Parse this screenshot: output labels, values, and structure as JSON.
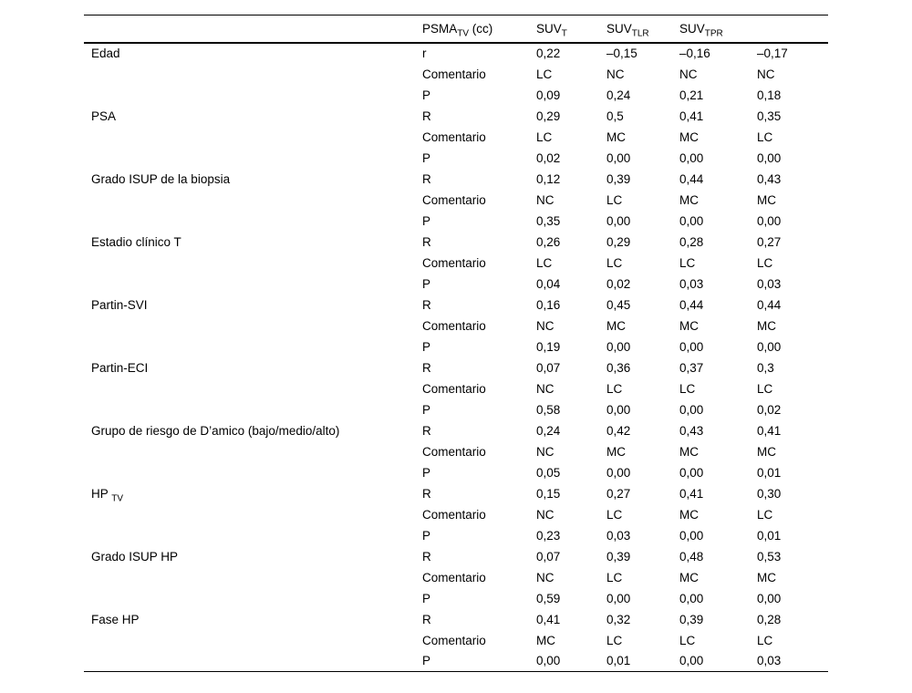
{
  "table": {
    "headers": [
      {
        "base": "",
        "sub": "",
        "suffix": ""
      },
      {
        "base": "PSMA",
        "sub": "TV",
        "suffix": " (cc)"
      },
      {
        "base": "SUV",
        "sub": "T",
        "suffix": ""
      },
      {
        "base": "SUV",
        "sub": "TLR",
        "suffix": ""
      },
      {
        "base": "SUV",
        "sub": "TPR",
        "suffix": ""
      },
      {
        "base": "",
        "sub": "",
        "suffix": ""
      }
    ],
    "groups": [
      {
        "label": {
          "base": "Edad",
          "sub": ""
        },
        "rows": [
          {
            "stat": "r",
            "values": [
              "0,22",
              "–0,15",
              "–0,16",
              "–0,17"
            ]
          },
          {
            "stat": "Comentario",
            "values": [
              "LC",
              "NC",
              "NC",
              "NC"
            ]
          },
          {
            "stat": "P",
            "values": [
              "0,09",
              "0,24",
              "0,21",
              "0,18"
            ]
          }
        ]
      },
      {
        "label": {
          "base": "PSA",
          "sub": ""
        },
        "rows": [
          {
            "stat": "R",
            "values": [
              "0,29",
              "0,5",
              "0,41",
              "0,35"
            ]
          },
          {
            "stat": "Comentario",
            "values": [
              "LC",
              "MC",
              "MC",
              "LC"
            ]
          },
          {
            "stat": "P",
            "values": [
              "0,02",
              "0,00",
              "0,00",
              "0,00"
            ]
          }
        ]
      },
      {
        "label": {
          "base": "Grado ISUP de la biopsia",
          "sub": ""
        },
        "rows": [
          {
            "stat": "R",
            "values": [
              "0,12",
              "0,39",
              "0,44",
              "0,43"
            ]
          },
          {
            "stat": "Comentario",
            "values": [
              "NC",
              "LC",
              "MC",
              "MC"
            ]
          },
          {
            "stat": "P",
            "values": [
              "0,35",
              "0,00",
              "0,00",
              "0,00"
            ]
          }
        ]
      },
      {
        "label": {
          "base": "Estadio clínico T",
          "sub": ""
        },
        "rows": [
          {
            "stat": "R",
            "values": [
              "0,26",
              "0,29",
              "0,28",
              "0,27"
            ]
          },
          {
            "stat": "Comentario",
            "values": [
              "LC",
              "LC",
              "LC",
              "LC"
            ]
          },
          {
            "stat": "P",
            "values": [
              "0,04",
              "0,02",
              "0,03",
              "0,03"
            ]
          }
        ]
      },
      {
        "label": {
          "base": "Partin-SVI",
          "sub": ""
        },
        "rows": [
          {
            "stat": "R",
            "values": [
              "0,16",
              "0,45",
              "0,44",
              "0,44"
            ]
          },
          {
            "stat": "Comentario",
            "values": [
              "NC",
              "MC",
              "MC",
              "MC"
            ]
          },
          {
            "stat": "P",
            "values": [
              "0,19",
              "0,00",
              "0,00",
              "0,00"
            ]
          }
        ]
      },
      {
        "label": {
          "base": "Partin-ECI",
          "sub": ""
        },
        "rows": [
          {
            "stat": "R",
            "values": [
              "0,07",
              "0,36",
              "0,37",
              "0,3"
            ]
          },
          {
            "stat": "Comentario",
            "values": [
              "NC",
              "LC",
              "LC",
              "LC"
            ]
          },
          {
            "stat": "P",
            "values": [
              "0,58",
              "0,00",
              "0,00",
              "0,02"
            ]
          }
        ]
      },
      {
        "label": {
          "base": "Grupo de riesgo de D’amico (bajo/medio/alto)",
          "sub": ""
        },
        "rows": [
          {
            "stat": "R",
            "values": [
              "0,24",
              "0,42",
              "0,43",
              "0,41"
            ]
          },
          {
            "stat": "Comentario",
            "values": [
              "NC",
              "MC",
              "MC",
              "MC"
            ]
          },
          {
            "stat": "P",
            "values": [
              "0,05",
              "0,00",
              "0,00",
              "0,01"
            ]
          }
        ]
      },
      {
        "label": {
          "base": "HP ",
          "sub": "TV"
        },
        "rows": [
          {
            "stat": "R",
            "values": [
              "0,15",
              "0,27",
              "0,41",
              "0,30"
            ]
          },
          {
            "stat": "Comentario",
            "values": [
              "NC",
              "LC",
              "MC",
              "LC"
            ]
          },
          {
            "stat": "P",
            "values": [
              "0,23",
              "0,03",
              "0,00",
              "0,01"
            ]
          }
        ]
      },
      {
        "label": {
          "base": "Grado ISUP HP",
          "sub": ""
        },
        "rows": [
          {
            "stat": "R",
            "values": [
              "0,07",
              "0,39",
              "0,48",
              "0,53"
            ]
          },
          {
            "stat": "Comentario",
            "values": [
              "NC",
              "LC",
              "MC",
              "MC"
            ]
          },
          {
            "stat": "P",
            "values": [
              "0,59",
              "0,00",
              "0,00",
              "0,00"
            ]
          }
        ]
      },
      {
        "label": {
          "base": "Fase HP",
          "sub": ""
        },
        "rows": [
          {
            "stat": "R",
            "values": [
              "0,41",
              "0,32",
              "0,39",
              "0,28"
            ]
          },
          {
            "stat": "Comentario",
            "values": [
              "MC",
              "LC",
              "LC",
              "LC"
            ]
          },
          {
            "stat": "P",
            "values": [
              "0,00",
              "0,01",
              "0,00",
              "0,03"
            ]
          }
        ]
      }
    ]
  }
}
